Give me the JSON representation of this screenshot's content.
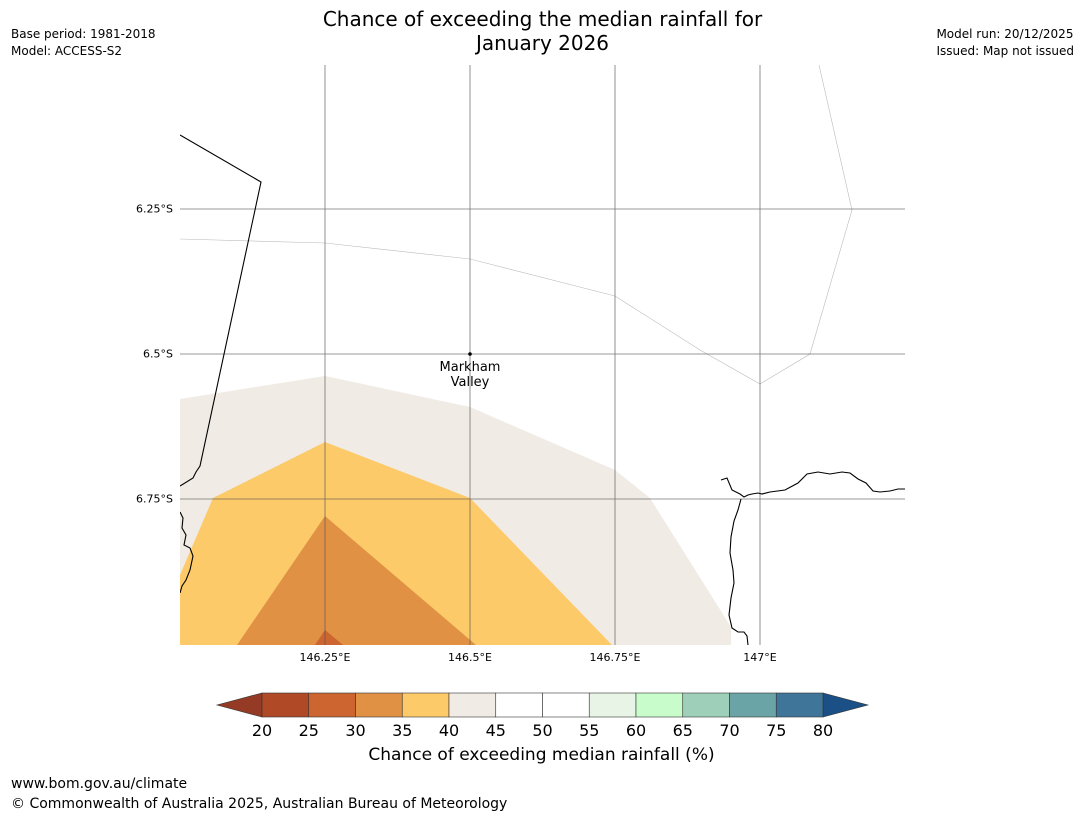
{
  "title_line1": "Chance of exceeding the median rainfall for",
  "title_line2": "January 2026",
  "base_period": "Base period: 1981-2018",
  "model": "Model: ACCESS-S2",
  "model_run": "Model run: 20/12/2025",
  "issued": "Issued: Map not issued",
  "map": {
    "lon_ticks": [
      "146.25°E",
      "146.5°E",
      "146.75°E",
      "147°E"
    ],
    "lat_ticks": [
      "6.25°S",
      "6.5°S",
      "6.75°S"
    ],
    "place": {
      "name_line1": "Markham",
      "name_line2": "Valley"
    }
  },
  "legend": {
    "label": "Chance of exceeding median rainfall (%)",
    "ticks": [
      "20",
      "25",
      "30",
      "35",
      "40",
      "45",
      "50",
      "55",
      "60",
      "65",
      "70",
      "75",
      "80"
    ],
    "colors": [
      "#b04a26",
      "#cc6530",
      "#e09144",
      "#fdca69",
      "#f0ebe5",
      "#ffffff",
      "#ffffff",
      "#e8f5e6",
      "#c8fccb",
      "#9ecfb8",
      "#6aa4a6",
      "#3e7599"
    ],
    "under_color": "#953b25",
    "over_color": "#1b5087"
  },
  "footer": {
    "url": "www.bom.gov.au/climate",
    "copyright": "© Commonwealth of Australia 2025, Australian Bureau of Meteorology"
  }
}
